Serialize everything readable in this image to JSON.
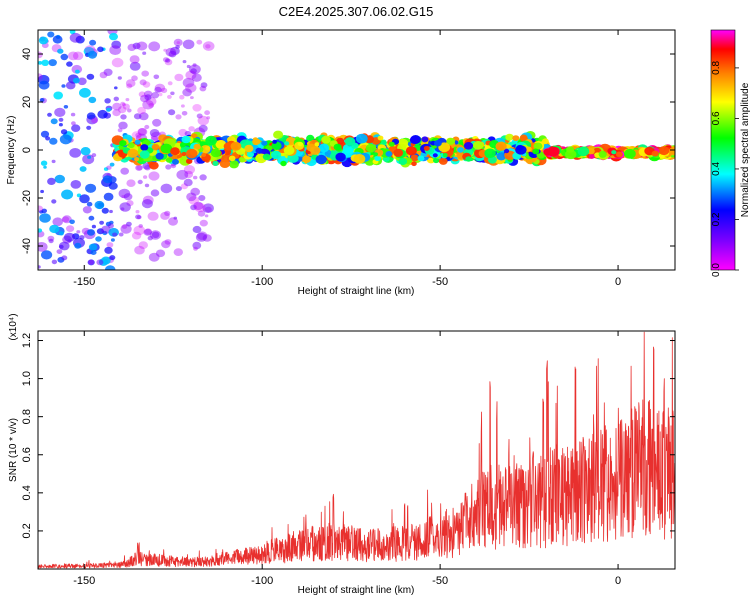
{
  "figure": {
    "title": "C2E4.2025.307.06.02.G15"
  },
  "chart_data": [
    {
      "type": "heatmap",
      "xlabel": "Height of straight line (km)",
      "ylabel": "Frequency (Hz)",
      "xlim": [
        -163,
        16
      ],
      "ylim": [
        -50,
        50
      ],
      "xticks": [
        -150,
        -100,
        -50,
        0
      ],
      "yticks": [
        -40,
        -20,
        0,
        20,
        40
      ],
      "colorbar": {
        "label": "Normalized spectral amplitude",
        "range": [
          0.0,
          0.95
        ],
        "ticks": [
          0.0,
          0.2,
          0.4,
          0.6,
          0.8
        ],
        "tick_labels": [
          "0.0",
          "0.2",
          "0.4",
          "0.6",
          "0.8"
        ],
        "colormap": [
          "#ff00ff",
          "#7f00ff",
          "#0000ff",
          "#00ffff",
          "#00ff00",
          "#ffff00",
          "#ff8000",
          "#ff0000",
          "#ff00ff"
        ]
      },
      "description_bands": [
        {
          "x": [
            -163,
            -141
          ],
          "freq_spread": 50,
          "amplitude": [
            0.05,
            0.35
          ]
        },
        {
          "x": [
            -141,
            -115
          ],
          "freq_spread": 45,
          "amplitude": [
            0.02,
            0.15
          ]
        },
        {
          "x": [
            -141,
            -20
          ],
          "freq_center": 0,
          "freq_spread": 7,
          "amplitude": [
            0.2,
            0.8
          ]
        },
        {
          "x": [
            -20,
            16
          ],
          "freq_center": -1,
          "freq_spread": 2,
          "amplitude": [
            0.4,
            0.95
          ]
        }
      ]
    },
    {
      "type": "line",
      "xlabel": "Height of straight line (km)",
      "ylabel": "SNR (10 * v/v)",
      "y_multiplier": "(x10⁴)",
      "xlim": [
        -163,
        16
      ],
      "ylim": [
        0,
        1.25
      ],
      "xticks": [
        -150,
        -100,
        -50,
        0
      ],
      "yticks": [
        0.2,
        0.4,
        0.6,
        0.8,
        1.0,
        1.2
      ],
      "ytick_labels": [
        "0.2",
        "0.4",
        "0.6",
        "0.8",
        "1.0",
        "1.2"
      ],
      "color": "#e8302e",
      "envelope": [
        {
          "x": -163,
          "y": 0.02
        },
        {
          "x": -140,
          "y": 0.03
        },
        {
          "x": -135,
          "y": 0.08
        },
        {
          "x": -120,
          "y": 0.05
        },
        {
          "x": -110,
          "y": 0.08
        },
        {
          "x": -100,
          "y": 0.12
        },
        {
          "x": -90,
          "y": 0.18
        },
        {
          "x": -80,
          "y": 0.22
        },
        {
          "x": -70,
          "y": 0.18
        },
        {
          "x": -60,
          "y": 0.2
        },
        {
          "x": -50,
          "y": 0.26
        },
        {
          "x": -45,
          "y": 0.3
        },
        {
          "x": -38,
          "y": 0.48
        },
        {
          "x": -30,
          "y": 0.52
        },
        {
          "x": -20,
          "y": 0.55
        },
        {
          "x": -10,
          "y": 0.62
        },
        {
          "x": 0,
          "y": 0.68
        },
        {
          "x": 8,
          "y": 0.8
        },
        {
          "x": 16,
          "y": 0.72
        }
      ],
      "peaks": [
        {
          "x": -135,
          "y": 0.14
        },
        {
          "x": -80,
          "y": 0.4
        },
        {
          "x": -60,
          "y": 0.35
        },
        {
          "x": -36,
          "y": 1.0
        },
        {
          "x": -34,
          "y": 0.9
        },
        {
          "x": -21,
          "y": 0.94
        },
        {
          "x": -20,
          "y": 1.1
        },
        {
          "x": -12,
          "y": 1.1
        },
        {
          "x": 10,
          "y": 1.25
        },
        {
          "x": 13,
          "y": 1.0
        }
      ]
    }
  ]
}
